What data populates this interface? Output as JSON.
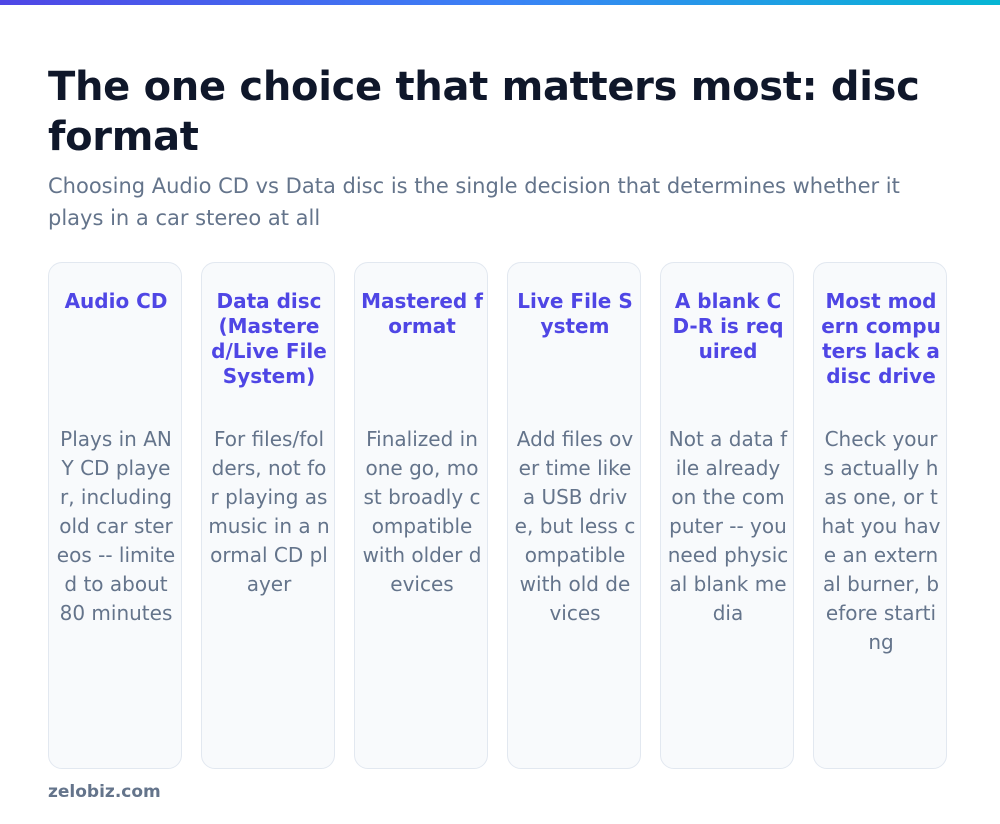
{
  "header": {
    "title": "The one choice that matters most: disc format",
    "subtitle": "Choosing Audio CD vs Data disc is the single decision that determines whether it plays in a car stereo at all"
  },
  "cards": [
    {
      "title": "Audio CD",
      "body": "Plays in ANY CD player, including old car stereos -- limited to about 80 minutes"
    },
    {
      "title": "Data disc (Mastered/Live File System)",
      "body": "For files/folders, not for playing as music in a normal CD player"
    },
    {
      "title": "Mastered format",
      "body": "Finalized in one go, most broadly compatible with older devices"
    },
    {
      "title": "Live File System",
      "body": "Add files over time like a USB drive, but less compatible with old devices"
    },
    {
      "title": "A blank CD-R is required",
      "body": "Not a data file already on the computer -- you need physical blank media"
    },
    {
      "title": "Most modern computers lack a disc drive",
      "body": "Check yours actually has one, or that you have an external burner, before starting"
    }
  ],
  "footer": {
    "site": "zelobiz.com"
  },
  "colors": {
    "title": "#0f172a",
    "subtitle": "#64748b",
    "card_title": "#4f46e5",
    "card_body": "#64748b",
    "card_bg": "#f8fafc",
    "card_border": "#e2e8f0",
    "accent_bar_start": "#4f46e5",
    "accent_bar_end": "#06b6d4"
  }
}
